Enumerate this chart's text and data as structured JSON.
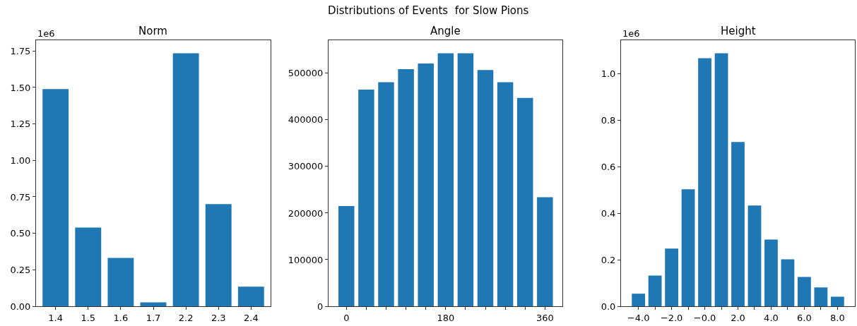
{
  "chart_data": [
    {
      "type": "other",
      "title": "Distributions of Events  for Slow Pions"
    },
    {
      "type": "bar",
      "title": "Norm",
      "annotations": [
        "1e6"
      ],
      "color": "#1f77b4",
      "categories": [
        "1.4",
        "1.5",
        "1.6",
        "1.7",
        "2.2",
        "2.3",
        "2.4"
      ],
      "values": [
        1.489,
        0.54,
        0.332,
        0.027,
        1.735,
        0.7,
        0.134
      ],
      "ylim": [
        0,
        1.824
      ],
      "yticks": [
        {
          "value": 0,
          "label": "0.00"
        },
        0.25,
        {
          "value": 0.5,
          "label": "0.50"
        },
        0.75,
        {
          "value": 1,
          "label": "1.00"
        },
        1.25,
        {
          "value": 1.5,
          "label": "1.50"
        },
        1.75
      ]
    },
    {
      "type": "bar",
      "title": "Angle",
      "color": "#1f77b4",
      "x": [
        0,
        36,
        72,
        108,
        144,
        180,
        216,
        252,
        288,
        324,
        360
      ],
      "values": [
        215000,
        465000,
        481000,
        509000,
        521000,
        543000,
        543000,
        507000,
        481000,
        447000,
        234000
      ],
      "xlim": [
        -32.4,
        391.6
      ],
      "xticks": [
        0,
        {
          "value": 36,
          "label": null
        },
        {
          "value": 72,
          "label": null
        },
        {
          "value": 108,
          "label": null
        },
        {
          "value": 144,
          "label": null
        },
        180,
        {
          "value": 216,
          "label": null
        },
        {
          "value": 252,
          "label": null
        },
        {
          "value": 288,
          "label": null
        },
        {
          "value": 324,
          "label": null
        },
        360
      ],
      "ylim": [
        0,
        571000
      ],
      "yticks": [
        0,
        100000,
        200000,
        300000,
        400000,
        500000
      ]
    },
    {
      "type": "bar",
      "title": "Height",
      "annotations": [
        "1e6"
      ],
      "color": "#1f77b4",
      "x": [
        -4,
        -3,
        -2,
        -1,
        0,
        1,
        2,
        3,
        4,
        5,
        6,
        7,
        8
      ],
      "values": [
        0.054,
        0.132,
        0.248,
        0.503,
        1.067,
        1.088,
        0.706,
        0.433,
        0.287,
        0.202,
        0.126,
        0.081,
        0.041
      ],
      "xlim": [
        -5.05,
        9.05
      ],
      "xticks": [
        {
          "value": -4,
          "label": "−4.0"
        },
        {
          "value": -3,
          "label": null
        },
        {
          "value": -2,
          "label": "−2.0"
        },
        {
          "value": -1,
          "label": null
        },
        {
          "value": 0,
          "label": "−0.0"
        },
        {
          "value": 1,
          "label": null
        },
        {
          "value": 2,
          "label": "2.0"
        },
        {
          "value": 3,
          "label": null
        },
        {
          "value": 4,
          "label": "4.0"
        },
        {
          "value": 5,
          "label": null
        },
        {
          "value": 6,
          "label": "6.0"
        },
        {
          "value": 7,
          "label": null
        },
        {
          "value": 8,
          "label": "8.0"
        }
      ],
      "ylim": [
        0,
        1.144
      ],
      "yticks": [
        {
          "value": 0,
          "label": "0.0"
        },
        0.2,
        0.4,
        0.6,
        0.8,
        {
          "value": 1,
          "label": "1.0"
        }
      ]
    }
  ]
}
